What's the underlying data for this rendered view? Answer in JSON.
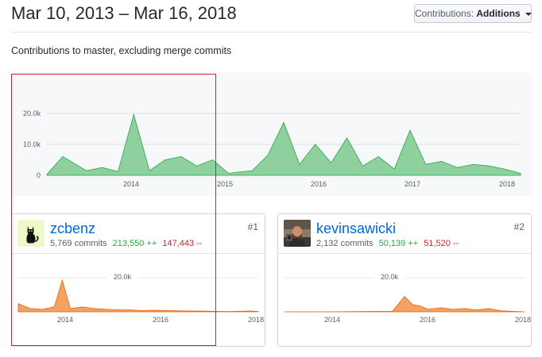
{
  "header": {
    "date_range": "Mar 10, 2013 – Mar 16, 2018",
    "contributions_button_prefix": "Contributions:",
    "contributions_button_value": "Additions",
    "subtitle": "Contributions to master, excluding merge commits"
  },
  "colors": {
    "main_graph_fill": "#8fd19e",
    "main_graph_stroke": "#28a745",
    "user_graph_fill": "#f4a262",
    "user_graph_stroke": "#e36209",
    "selection_border": "#cb2431",
    "link": "#0366d6"
  },
  "chart_data": [
    {
      "type": "area",
      "title": "",
      "y_ticks": [
        "20.0k",
        "10.0k",
        "0"
      ],
      "x_ticks": [
        "2014",
        "2015",
        "2016",
        "2017",
        "2018"
      ],
      "ylim": [
        0,
        27000
      ],
      "grid": true,
      "series": [
        {
          "x": [
            "2013-03",
            "2013-05",
            "2013-08",
            "2013-10",
            "2013-12",
            "2014-02",
            "2014-04",
            "2014-06",
            "2014-08",
            "2014-10",
            "2014-12",
            "2015-02",
            "2015-03",
            "2015-05",
            "2015-07",
            "2015-09",
            "2015-11",
            "2016-01",
            "2016-03",
            "2016-05",
            "2016-07",
            "2016-09",
            "2016-11",
            "2017-01",
            "2017-03",
            "2017-05",
            "2017-07",
            "2017-09",
            "2017-11",
            "2018-01",
            "2018-03"
          ],
          "values": [
            300,
            6000,
            1500,
            2500,
            1200,
            19500,
            1500,
            5000,
            6000,
            3000,
            5000,
            600,
            1000,
            1500,
            6500,
            17000,
            3500,
            10000,
            4000,
            12000,
            3000,
            6000,
            2000,
            14500,
            3500,
            4500,
            2500,
            3500,
            3000,
            2000,
            600
          ]
        }
      ]
    }
  ],
  "contributors": [
    {
      "rank": "#1",
      "username": "zcbenz",
      "commits": "5,769 commits",
      "additions": "213,550 ++",
      "deletions": "147,443 --",
      "avatar_icon": "black-cat-icon",
      "chart_data": {
        "type": "area",
        "title": "",
        "y_ticks": [
          "20.0k"
        ],
        "x_ticks": [
          "2014",
          "2016",
          "2018"
        ],
        "ylim": [
          0,
          27000
        ],
        "grid": true,
        "series": [
          {
            "x": [
              "2013-03",
              "2013-06",
              "2013-09",
              "2013-12",
              "2014-02",
              "2014-04",
              "2014-07",
              "2014-10",
              "2015-01",
              "2015-04",
              "2015-07",
              "2015-10",
              "2016-01",
              "2016-04",
              "2016-07",
              "2016-10",
              "2017-01",
              "2017-04",
              "2017-07",
              "2017-10",
              "2018-01",
              "2018-03"
            ],
            "values": [
              5000,
              2000,
              1500,
              3000,
              19500,
              2000,
              3000,
              2000,
              1500,
              1200,
              1200,
              800,
              1000,
              800,
              600,
              500,
              400,
              300,
              200,
              300,
              500,
              200
            ]
          }
        ]
      }
    },
    {
      "rank": "#2",
      "username": "kevinsawicki",
      "commits": "2,132 commits",
      "additions": "50,139 ++",
      "deletions": "51,520 --",
      "avatar_icon": "user-photo-avatar",
      "chart_data": {
        "type": "area",
        "title": "",
        "y_ticks": [
          "20.0k"
        ],
        "x_ticks": [
          "2014",
          "2016",
          "2018"
        ],
        "ylim": [
          0,
          27000
        ],
        "grid": true,
        "series": [
          {
            "x": [
              "2013-03",
              "2014-01",
              "2014-10",
              "2015-06",
              "2015-09",
              "2015-11",
              "2016-01",
              "2016-03",
              "2016-06",
              "2016-09",
              "2016-12",
              "2017-03",
              "2017-06",
              "2017-09",
              "2017-12",
              "2018-03"
            ],
            "values": [
              0,
              0,
              200,
              300,
              9500,
              4500,
              3500,
              1500,
              2500,
              1500,
              2000,
              1200,
              2000,
              600,
              300,
              0
            ]
          }
        ]
      }
    }
  ]
}
